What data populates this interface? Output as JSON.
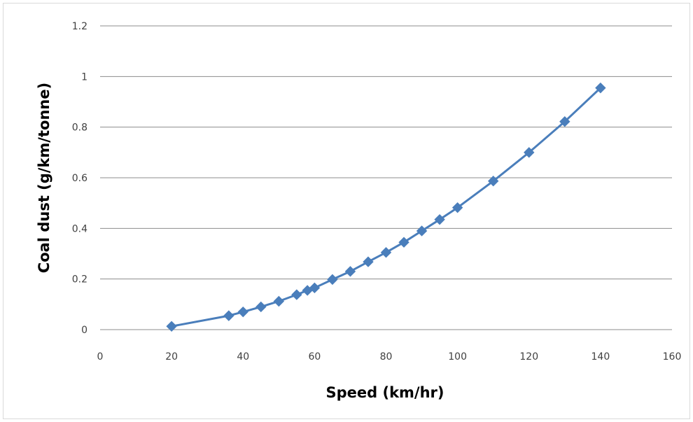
{
  "chart_data": {
    "type": "line",
    "title": "",
    "xlabel": "Speed (km/hr)",
    "ylabel": "Coal dust (g/km/tonne)",
    "xlim": [
      0,
      160
    ],
    "ylim": [
      0,
      1.2
    ],
    "xticks": [
      "0",
      "20",
      "40",
      "60",
      "80",
      "100",
      "120",
      "140",
      "160"
    ],
    "yticks": [
      "0",
      "0.2",
      "0.4",
      "0.6",
      "0.8",
      "1",
      "1.2"
    ],
    "grid": true,
    "legend": "none",
    "series": [
      {
        "color": "#4a7ebb",
        "marker": "diamond",
        "points": [
          {
            "x": 20,
            "y": 0.013
          },
          {
            "x": 36,
            "y": 0.055
          },
          {
            "x": 40,
            "y": 0.07
          },
          {
            "x": 45,
            "y": 0.09
          },
          {
            "x": 50,
            "y": 0.112
          },
          {
            "x": 55,
            "y": 0.138
          },
          {
            "x": 58,
            "y": 0.155
          },
          {
            "x": 60,
            "y": 0.165
          },
          {
            "x": 65,
            "y": 0.198
          },
          {
            "x": 70,
            "y": 0.23
          },
          {
            "x": 75,
            "y": 0.268
          },
          {
            "x": 80,
            "y": 0.305
          },
          {
            "x": 85,
            "y": 0.345
          },
          {
            "x": 90,
            "y": 0.39
          },
          {
            "x": 95,
            "y": 0.435
          },
          {
            "x": 100,
            "y": 0.482
          },
          {
            "x": 110,
            "y": 0.587
          },
          {
            "x": 120,
            "y": 0.7
          },
          {
            "x": 130,
            "y": 0.822
          },
          {
            "x": 140,
            "y": 0.955
          }
        ]
      }
    ]
  }
}
